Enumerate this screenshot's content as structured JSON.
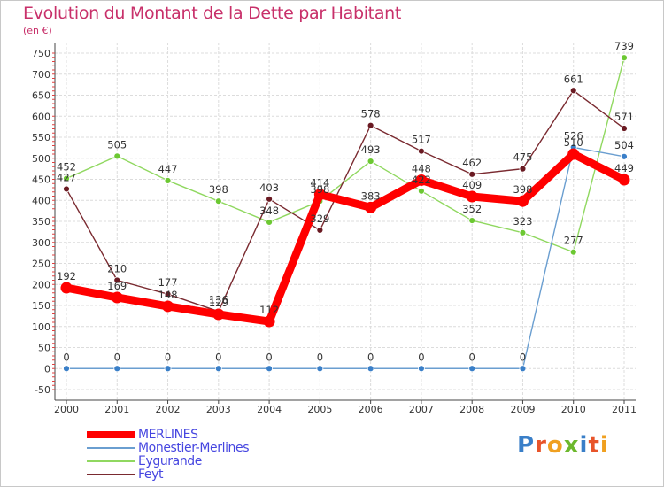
{
  "title": "Evolution du Montant de la Dette par Habitant",
  "subtitle": "(en €)",
  "logo": {
    "text": "Proxiti",
    "letters": [
      {
        "ch": "P",
        "color": "#3a7fc8"
      },
      {
        "ch": "r",
        "color": "#e8542a"
      },
      {
        "ch": "o",
        "color": "#f0a020"
      },
      {
        "ch": "x",
        "color": "#6cb82c"
      },
      {
        "ch": "i",
        "color": "#3a7fc8"
      },
      {
        "ch": "t",
        "color": "#e8542a"
      },
      {
        "ch": "i",
        "color": "#f0a020"
      }
    ]
  },
  "chart_data": {
    "type": "line",
    "title": "Evolution du Montant de la Dette par Habitant",
    "subtitle": "(en €)",
    "x": [
      "2000",
      "2001",
      "2002",
      "2003",
      "2004",
      "2005",
      "2006",
      "2007",
      "2008",
      "2009",
      "2010",
      "2011"
    ],
    "ylim": [
      -50,
      750
    ],
    "yticks": [
      -50,
      0,
      50,
      100,
      150,
      200,
      250,
      300,
      350,
      400,
      450,
      500,
      550,
      600,
      650,
      700,
      750
    ],
    "grid": true,
    "legend_position": "bottom-left",
    "series": [
      {
        "name": "MERLINES",
        "color": "#ff0000",
        "values": [
          192,
          169,
          148,
          129,
          112,
          414,
          383,
          448,
          409,
          398,
          510,
          449
        ]
      },
      {
        "name": "Monestier-Merlines",
        "color": "#6a9ed0",
        "point_color": "#3a7fc8",
        "values": [
          0,
          0,
          0,
          0,
          0,
          0,
          0,
          0,
          0,
          0,
          526,
          504
        ]
      },
      {
        "name": "Eygurande",
        "color": "#90d860",
        "point_color": "#6cc832",
        "values": [
          452,
          505,
          447,
          398,
          348,
          398,
          493,
          422,
          352,
          323,
          277,
          739
        ]
      },
      {
        "name": "Feyt",
        "color": "#7a2a30",
        "point_color": "#6a1a22",
        "values": [
          427,
          210,
          177,
          136,
          403,
          329,
          578,
          517,
          462,
          475,
          661,
          571
        ]
      }
    ]
  }
}
